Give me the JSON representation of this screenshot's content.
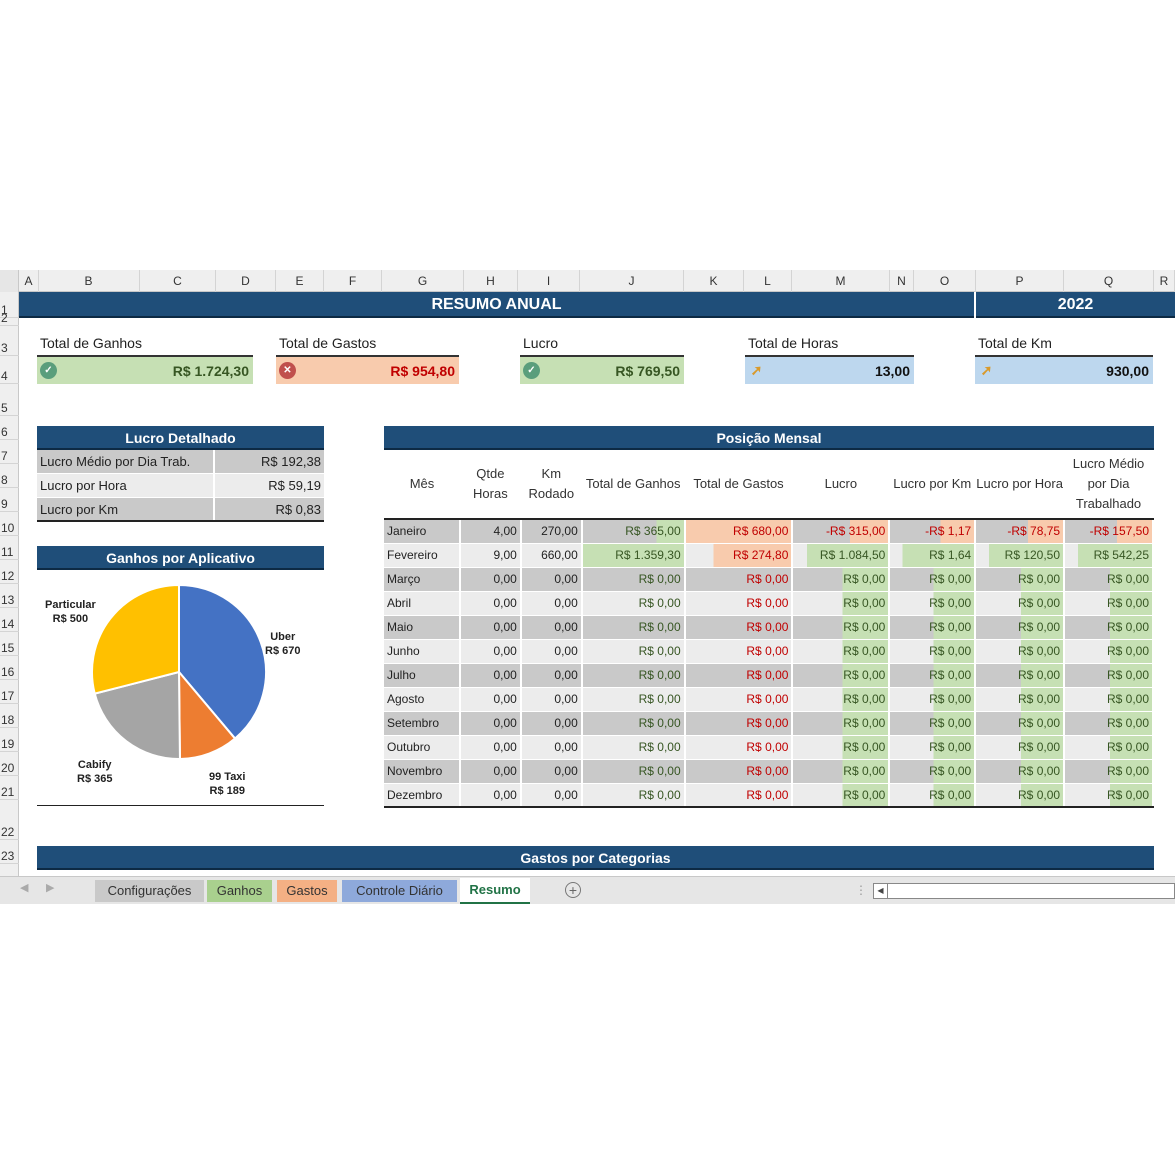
{
  "columns": [
    "A",
    "B",
    "C",
    "D",
    "E",
    "F",
    "G",
    "H",
    "I",
    "J",
    "K",
    "L",
    "M",
    "N",
    "O",
    "P",
    "Q",
    "R"
  ],
  "rows": [
    "1",
    "2",
    "3",
    "4",
    "5",
    "6",
    "7",
    "8",
    "9",
    "10",
    "11",
    "12",
    "13",
    "14",
    "15",
    "16",
    "17",
    "18",
    "19",
    "20",
    "21",
    "22",
    "23"
  ],
  "header": {
    "title": "RESUMO ANUAL",
    "year": "2022"
  },
  "kpis": [
    {
      "label": "Total de Ganhos",
      "value": "R$ 1.724,30",
      "icon": "check-circle-icon",
      "status": "positive"
    },
    {
      "label": "Total de Gastos",
      "value": "R$ 954,80",
      "icon": "x-circle-icon",
      "status": "negative"
    },
    {
      "label": "Lucro",
      "value": "R$ 769,50",
      "icon": "check-circle-icon",
      "status": "positive"
    },
    {
      "label": "Total de Horas",
      "value": "13,00",
      "icon": "arrow-up-right-icon",
      "status": "neutral"
    },
    {
      "label": "Total de Km",
      "value": "930,00",
      "icon": "arrow-up-right-icon",
      "status": "neutral"
    }
  ],
  "lucro_detalhado": {
    "title": "Lucro Detalhado",
    "rows": [
      {
        "label": "Lucro Médio por Dia Trab.",
        "value": "R$ 192,38"
      },
      {
        "label": "Lucro por Hora",
        "value": "R$ 59,19"
      },
      {
        "label": "Lucro por Km",
        "value": "R$ 0,83"
      }
    ]
  },
  "ganhos_app": {
    "title": "Ganhos por Aplicativo"
  },
  "chart_data": {
    "type": "pie",
    "title": "Ganhos por Aplicativo",
    "categories": [
      "Uber",
      "99 Taxi",
      "Cabify",
      "Particular"
    ],
    "values": [
      670,
      189,
      365,
      500
    ],
    "labels": [
      "Uber\nR$ 670",
      "99 Taxi\nR$ 189",
      "Cabify\nR$ 365",
      "Particular\nR$ 500"
    ],
    "colors": [
      "#4472c4",
      "#ed7d31",
      "#a5a5a5",
      "#ffc000"
    ]
  },
  "posicao_mensal": {
    "title": "Posição Mensal",
    "headers": [
      "Mês",
      "Qtde Horas",
      "Km Rodado",
      "Total de Ganhos",
      "Total de Gastos",
      "Lucro",
      "Lucro por Km",
      "Lucro por Hora",
      "Lucro Médio por Dia Trabalhado"
    ],
    "rows": [
      [
        "Janeiro",
        "4,00",
        "270,00",
        "R$ 365,00",
        "R$ 680,00",
        "-R$ 315,00",
        "-R$ 1,17",
        "-R$ 78,75",
        "-R$ 157,50"
      ],
      [
        "Fevereiro",
        "9,00",
        "660,00",
        "R$ 1.359,30",
        "R$ 274,80",
        "R$ 1.084,50",
        "R$ 1,64",
        "R$ 120,50",
        "R$ 542,25"
      ],
      [
        "Março",
        "0,00",
        "0,00",
        "R$ 0,00",
        "R$ 0,00",
        "R$ 0,00",
        "R$ 0,00",
        "R$ 0,00",
        "R$ 0,00"
      ],
      [
        "Abril",
        "0,00",
        "0,00",
        "R$ 0,00",
        "R$ 0,00",
        "R$ 0,00",
        "R$ 0,00",
        "R$ 0,00",
        "R$ 0,00"
      ],
      [
        "Maio",
        "0,00",
        "0,00",
        "R$ 0,00",
        "R$ 0,00",
        "R$ 0,00",
        "R$ 0,00",
        "R$ 0,00",
        "R$ 0,00"
      ],
      [
        "Junho",
        "0,00",
        "0,00",
        "R$ 0,00",
        "R$ 0,00",
        "R$ 0,00",
        "R$ 0,00",
        "R$ 0,00",
        "R$ 0,00"
      ],
      [
        "Julho",
        "0,00",
        "0,00",
        "R$ 0,00",
        "R$ 0,00",
        "R$ 0,00",
        "R$ 0,00",
        "R$ 0,00",
        "R$ 0,00"
      ],
      [
        "Agosto",
        "0,00",
        "0,00",
        "R$ 0,00",
        "R$ 0,00",
        "R$ 0,00",
        "R$ 0,00",
        "R$ 0,00",
        "R$ 0,00"
      ],
      [
        "Setembro",
        "0,00",
        "0,00",
        "R$ 0,00",
        "R$ 0,00",
        "R$ 0,00",
        "R$ 0,00",
        "R$ 0,00",
        "R$ 0,00"
      ],
      [
        "Outubro",
        "0,00",
        "0,00",
        "R$ 0,00",
        "R$ 0,00",
        "R$ 0,00",
        "R$ 0,00",
        "R$ 0,00",
        "R$ 0,00"
      ],
      [
        "Novembro",
        "0,00",
        "0,00",
        "R$ 0,00",
        "R$ 0,00",
        "R$ 0,00",
        "R$ 0,00",
        "R$ 0,00",
        "R$ 0,00"
      ],
      [
        "Dezembro",
        "0,00",
        "0,00",
        "R$ 0,00",
        "R$ 0,00",
        "R$ 0,00",
        "R$ 0,00",
        "R$ 0,00",
        "R$ 0,00"
      ]
    ]
  },
  "gastos_categorias": {
    "title": "Gastos por Categorias"
  },
  "sheet_tabs": [
    {
      "label": "Configurações",
      "color": "#c9c9c9",
      "active": false
    },
    {
      "label": "Ganhos",
      "color": "#a9d08e",
      "active": false
    },
    {
      "label": "Gastos",
      "color": "#f4b084",
      "active": false
    },
    {
      "label": "Controle Diário",
      "color": "#8ea9db",
      "active": false
    },
    {
      "label": "Resumo",
      "color": "#ffffff",
      "active": true
    }
  ],
  "colors": {
    "banner": "#1f4e79",
    "positive_bg": "#c6e0b4",
    "negative_bg": "#f8cbad",
    "neutral_bg": "#bdd7ee"
  }
}
